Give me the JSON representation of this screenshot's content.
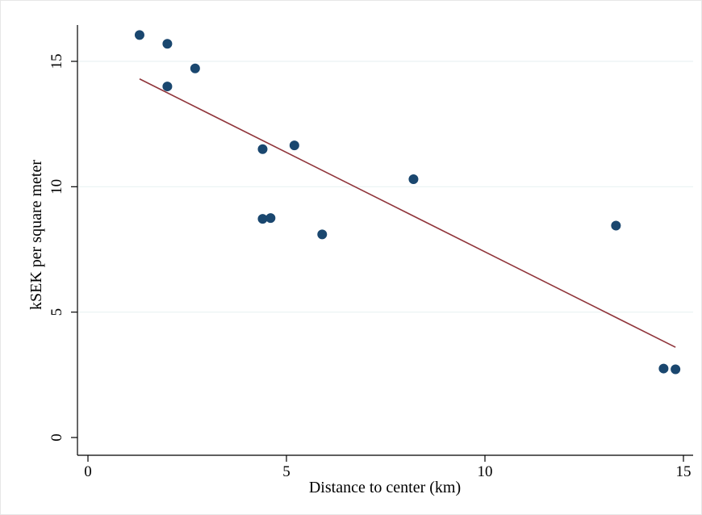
{
  "chart_data": {
    "type": "scatter",
    "title": "",
    "xlabel": "Distance to center (km)",
    "ylabel": "kSEK per square meter",
    "xlim": [
      0,
      15
    ],
    "ylim": [
      0,
      16
    ],
    "xticks": [
      0,
      5,
      10,
      15
    ],
    "yticks": [
      0,
      5,
      10,
      15
    ],
    "grid": "horizontal",
    "legend": "none",
    "series": [
      {
        "kind": "scatter",
        "color": "#1a476f",
        "points": [
          {
            "x": 1.3,
            "y": 16.05
          },
          {
            "x": 2.0,
            "y": 15.7
          },
          {
            "x": 2.0,
            "y": 14.0
          },
          {
            "x": 2.7,
            "y": 14.72
          },
          {
            "x": 4.4,
            "y": 11.5
          },
          {
            "x": 4.4,
            "y": 8.72
          },
          {
            "x": 4.6,
            "y": 8.75
          },
          {
            "x": 5.2,
            "y": 11.65
          },
          {
            "x": 5.9,
            "y": 8.1
          },
          {
            "x": 8.2,
            "y": 10.3
          },
          {
            "x": 13.3,
            "y": 8.45
          },
          {
            "x": 14.5,
            "y": 2.75
          },
          {
            "x": 14.8,
            "y": 2.72
          }
        ]
      },
      {
        "kind": "fit-line",
        "color": "#90353b",
        "points": [
          {
            "x": 1.3,
            "y": 14.3
          },
          {
            "x": 14.8,
            "y": 3.6
          }
        ]
      }
    ]
  }
}
